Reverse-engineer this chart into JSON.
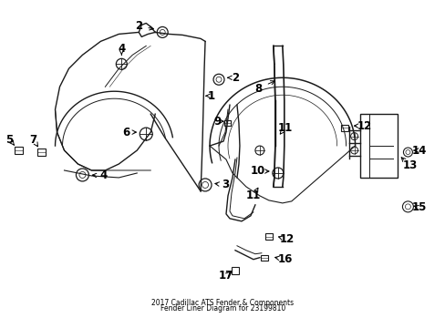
{
  "title": "2017 Cadillac ATS Fender & Components\nFender Liner Diagram for 23199810",
  "bg_color": "#ffffff",
  "line_color": "#1a1a1a",
  "text_color": "#000000",
  "fig_width": 4.89,
  "fig_height": 3.6,
  "dpi": 100,
  "label_fontsize": 8.5,
  "title_fontsize": 5.5,
  "lw_main": 1.0,
  "lw_thin": 0.6
}
